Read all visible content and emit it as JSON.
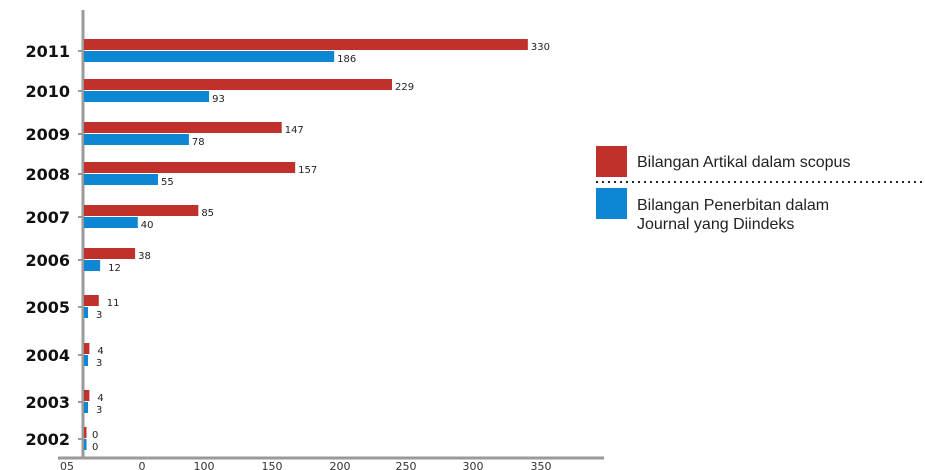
{
  "chart_data": {
    "type": "bar",
    "orientation": "horizontal",
    "categories": [
      "2011",
      "2010",
      "2009",
      "2008",
      "2007",
      "2006",
      "2005",
      "2004",
      "2003",
      "2002"
    ],
    "series": [
      {
        "name": "Bilangan Artikal dalam scopus",
        "color": "#c0312c",
        "values": [
          330,
          229,
          147,
          157,
          85,
          38,
          11,
          4,
          4,
          0
        ]
      },
      {
        "name": "Bilangan Penerbitan dalam Journal yang Diindeks",
        "name_lines": [
          "Bilangan Penerbitan dalam",
          "Journal yang Diindeks"
        ],
        "color": "#0d87d4",
        "values": [
          186,
          93,
          78,
          55,
          40,
          12,
          3,
          3,
          3,
          0
        ]
      }
    ],
    "xticks": [
      "05",
      "0",
      "100",
      "150",
      "200",
      "250",
      "300",
      "350"
    ],
    "xlim": [
      0,
      350
    ],
    "grid": false,
    "legend": "right",
    "title": "",
    "xlabel": "",
    "ylabel": ""
  }
}
